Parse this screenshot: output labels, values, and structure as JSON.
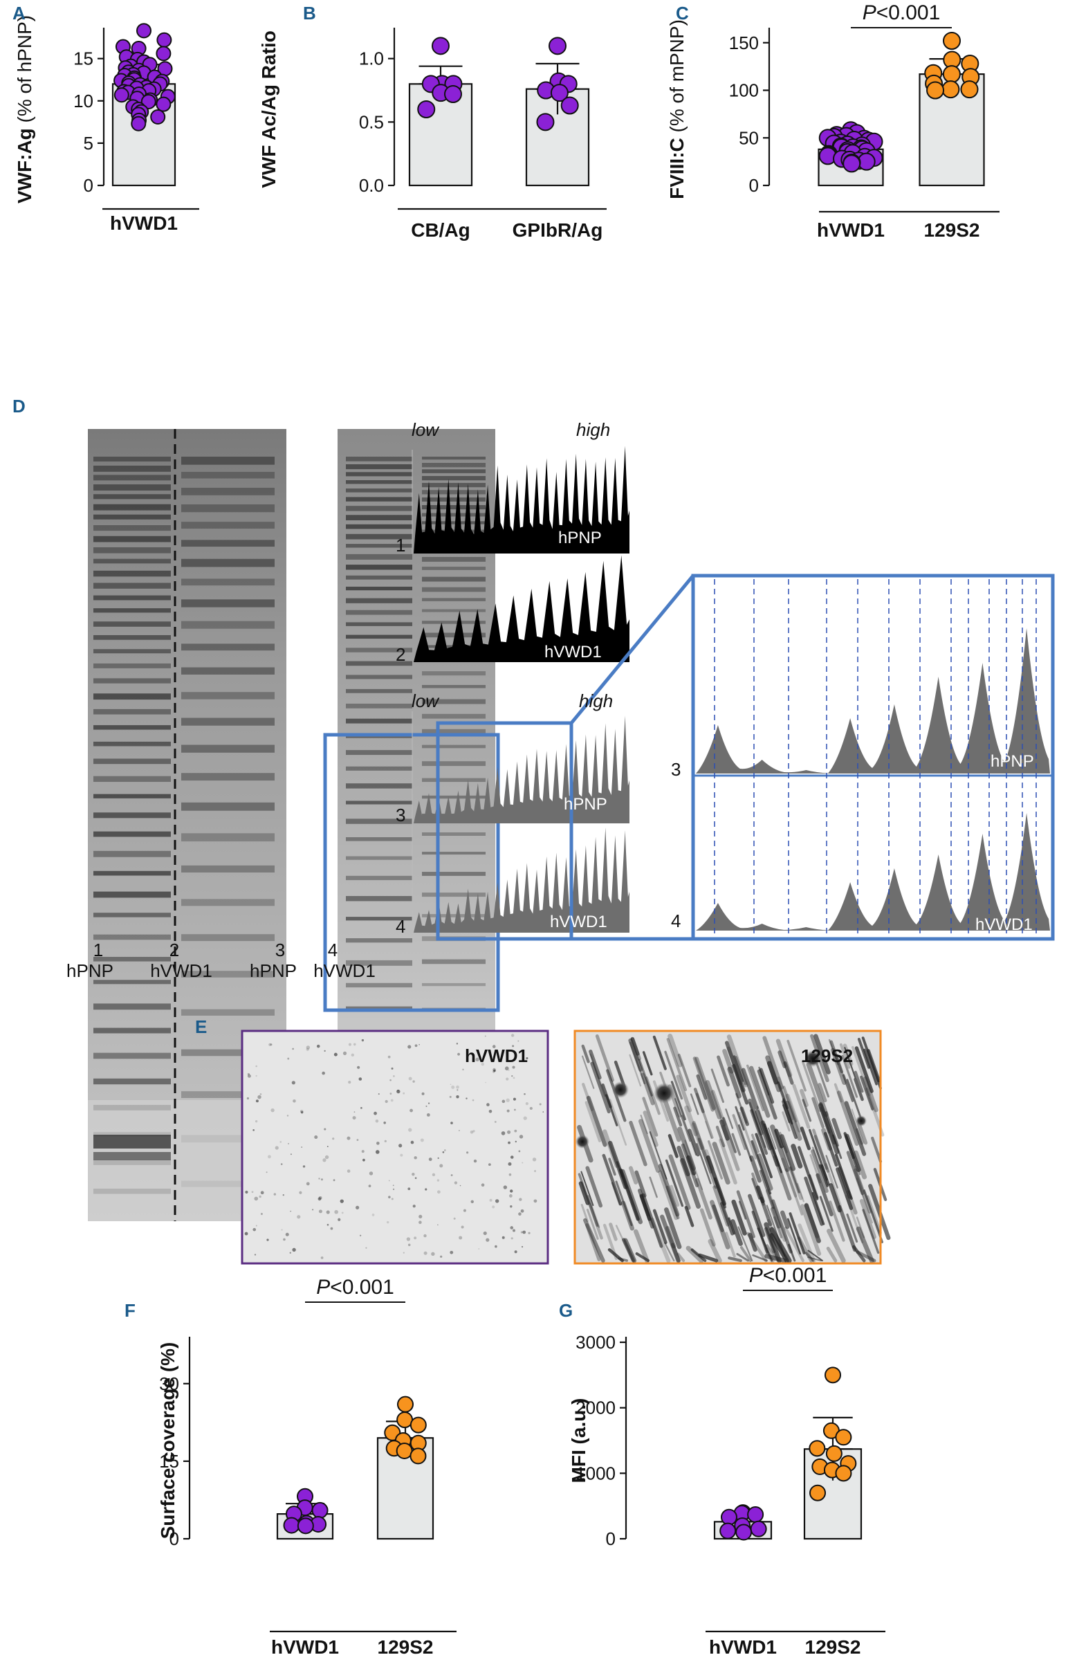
{
  "chart_data": [
    {
      "panel": "A",
      "type": "bar",
      "ylabel_main": "VWF:Ag",
      "ylabel_unit": "(% of hPNP)",
      "ylim": [
        0,
        18
      ],
      "yticks": [
        0,
        5,
        10,
        15
      ],
      "categories": [
        "hVWD1"
      ],
      "series": [
        {
          "values": [
            12.0
          ],
          "sd": [
            2.3
          ],
          "points": [
            [
              18.3,
              17.2,
              16.4,
              16.2,
              15.6,
              15.2,
              14.9,
              14.6,
              14.3,
              14.1,
              13.9,
              13.8,
              13.6,
              13.4,
              13.3,
              13.1,
              13.0,
              12.8,
              12.7,
              12.5,
              12.4,
              12.3,
              12.1,
              12.0,
              11.9,
              11.8,
              11.6,
              11.5,
              11.4,
              11.2,
              11.1,
              11.0,
              10.8,
              10.7,
              10.5,
              10.3,
              10.1,
              9.9,
              9.6,
              9.3,
              9.0,
              8.7,
              8.4,
              8.1,
              7.7,
              7.3
            ]
          ]
        }
      ]
    },
    {
      "panel": "B",
      "type": "bar",
      "ylabel": "VWF Ac/Ag Ratio",
      "ylim": [
        0,
        1.2
      ],
      "yticks": [
        "0.0",
        "0.5",
        "1.0"
      ],
      "categories": [
        "CB/Ag",
        "GPIbR/Ag"
      ],
      "series": [
        {
          "values": [
            0.8,
            0.76
          ],
          "sd": [
            0.14,
            0.2
          ],
          "points": [
            [
              1.1,
              0.8,
              0.8,
              0.8,
              0.73,
              0.72,
              0.6
            ],
            [
              1.1,
              0.82,
              0.8,
              0.75,
              0.73,
              0.63,
              0.5
            ]
          ]
        }
      ]
    },
    {
      "panel": "C",
      "type": "bar",
      "ylabel": "FVIII:C (% of mPNP)",
      "ylabel_main": "FVIII:C",
      "ylabel_unit": "(% of mPNP)",
      "ylim": [
        0,
        160
      ],
      "yticks": [
        0,
        50,
        100,
        150
      ],
      "categories": [
        "hVWD1",
        "129S2"
      ],
      "p_value": "P<0.001",
      "series": [
        {
          "values": [
            38,
            117
          ],
          "sd": [
            11,
            16
          ],
          "points": [
            [
              58,
              55,
              53,
              52,
              51,
              50,
              49,
              48,
              47,
              46,
              45,
              44,
              43,
              42,
              41,
              40,
              40,
              39,
              38,
              37,
              36,
              35,
              34,
              33,
              32,
              31,
              30,
              29,
              28,
              27,
              26,
              25,
              24,
              23
            ],
            [
              152,
              132,
              128,
              118,
              117,
              114,
              107,
              101,
              101,
              100
            ]
          ]
        }
      ]
    },
    {
      "panel": "F",
      "type": "bar",
      "ylabel": "Surface coverage (%)",
      "ylim": [
        0,
        38
      ],
      "yticks": [
        0,
        15,
        30
      ],
      "categories": [
        "hVWD1",
        "129S2"
      ],
      "p_value": "P<0.001",
      "series": [
        {
          "values": [
            4.8,
            19.5
          ],
          "sd": [
            2.0,
            3.2
          ],
          "points": [
            [
              8.2,
              6.0,
              5.5,
              4.8,
              3.0,
              2.8,
              2.6,
              2.5
            ],
            [
              26,
              23,
              22,
              20.5,
              19,
              18.5,
              17.5,
              17,
              16
            ]
          ]
        }
      ]
    },
    {
      "panel": "G",
      "type": "bar",
      "ylabel": "MFI (a.u.)",
      "ylim": [
        0,
        3000
      ],
      "yticks": [
        0,
        1000,
        2000,
        3000
      ],
      "categories": [
        "hVWD1",
        "129S2"
      ],
      "p_value": "P<0.001",
      "series": [
        {
          "values": [
            260,
            1370
          ],
          "sd": [
            100,
            480
          ],
          "points": [
            [
              400,
              390,
              370,
              330,
              200,
              150,
              120,
              100
            ],
            [
              2500,
              1650,
              1550,
              1380,
              1300,
              1150,
              1100,
              1050,
              1000,
              700
            ]
          ]
        }
      ]
    }
  ],
  "panel_labels": {
    "A": "A",
    "B": "B",
    "C": "C",
    "D": "D",
    "E": "E",
    "F": "F",
    "G": "G"
  },
  "panel_d": {
    "gel_lane_numbers": [
      "1",
      "2",
      "3",
      "4"
    ],
    "gel_lane_names": [
      "hPNP",
      "hVWD1",
      "hPNP",
      "hVWD1"
    ],
    "profile_low": "low",
    "profile_high": "high",
    "profile_numbers": [
      "1",
      "2",
      "3",
      "4"
    ],
    "profile_names": [
      "hPNP",
      "hVWD1",
      "hPNP",
      "hVWD1"
    ],
    "zoom_numbers": [
      "3",
      "4"
    ],
    "zoom_names": [
      "hPNP",
      "hVWD1"
    ]
  },
  "panel_e": {
    "left_label": "hVWD1",
    "right_label": "129S2",
    "colors": {
      "left_frame": "#5b2d82",
      "right_frame": "#f08a24"
    }
  },
  "colors": {
    "purple": "#8b21d6",
    "orange": "#f7931e",
    "bar_fill": "#e6e8e8",
    "profile_black": "#000000",
    "profile_gray": "#6e6e6e",
    "zoom_frame": "#4a7cc4",
    "panel_letter": "#1a5a8a"
  }
}
